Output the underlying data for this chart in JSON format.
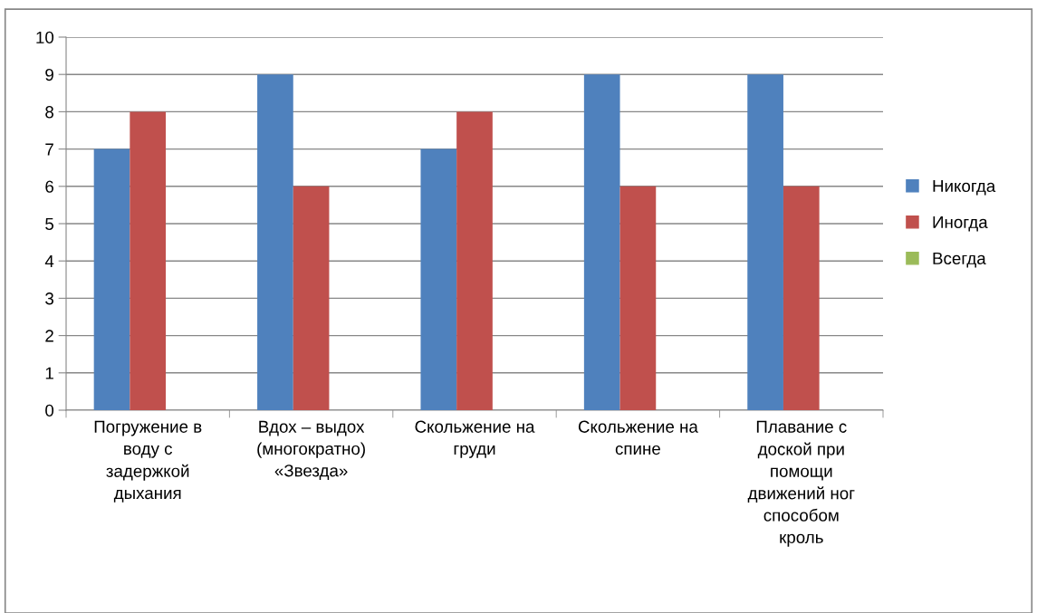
{
  "chart_data": {
    "type": "bar",
    "categories": [
      "Погружение в\nводу с\nзадержкой\nдыхания",
      "Вдох – выдох\n(многократно)\n«Звезда»",
      "Скольжение на\nгруди",
      "Скольжение на\nспине",
      "Плавание с\nдоской при\nпомощи\nдвижений ног\nспособом\nкроль"
    ],
    "series": [
      {
        "name": "Никогда",
        "color": "#4f81bd",
        "values": [
          7,
          9,
          7,
          9,
          9
        ]
      },
      {
        "name": "Иногда",
        "color": "#c0504d",
        "values": [
          8,
          6,
          8,
          6,
          6
        ]
      },
      {
        "name": "Всегда",
        "color": "#9bbb59",
        "values": [
          0,
          0,
          0,
          0,
          0
        ]
      }
    ],
    "ylim": [
      0,
      10
    ],
    "yticks": [
      0,
      1,
      2,
      3,
      4,
      5,
      6,
      7,
      8,
      9,
      10
    ],
    "grid": "y",
    "legend": "right"
  }
}
